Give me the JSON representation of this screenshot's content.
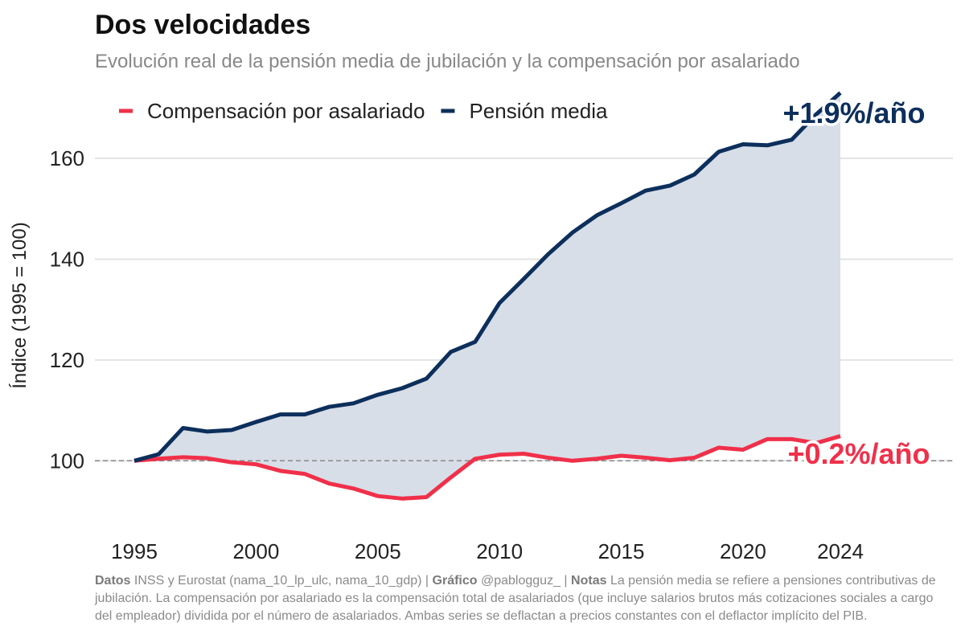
{
  "chart_data": {
    "type": "line",
    "title": "Dos velocidades",
    "subtitle": "Evolución real de la pensión media de jubilación y la compensación por asalariado",
    "y_label": "Índice (1995 = 100)",
    "x": [
      1995,
      1996,
      1997,
      1998,
      1999,
      2000,
      2001,
      2002,
      2003,
      2004,
      2005,
      2006,
      2007,
      2008,
      2009,
      2010,
      2011,
      2012,
      2013,
      2014,
      2015,
      2016,
      2017,
      2018,
      2019,
      2020,
      2021,
      2022,
      2023,
      2024
    ],
    "series": [
      {
        "name": "Compensación por asalariado",
        "color": "#f0304a",
        "values": [
          100,
          100.4,
          100.7,
          100.5,
          99.7,
          99.3,
          98.0,
          97.4,
          95.5,
          94.5,
          93.0,
          92.5,
          92.8,
          96.7,
          100.4,
          101.2,
          101.4,
          100.6,
          100.0,
          100.4,
          101.0,
          100.6,
          100.1,
          100.6,
          102.6,
          102.2,
          104.3,
          104.3,
          103.5,
          104.9
        ],
        "annotation": "+0.2%/año"
      },
      {
        "name": "Pensión media",
        "color": "#0d2f5c",
        "values": [
          100,
          101.3,
          106.5,
          105.8,
          106.1,
          107.7,
          109.2,
          109.2,
          110.7,
          111.4,
          113.1,
          114.4,
          116.3,
          121.6,
          123.6,
          131.3,
          136.1,
          141.0,
          145.3,
          148.7,
          151.1,
          153.6,
          154.6,
          156.8,
          161.3,
          162.8,
          162.6,
          163.7,
          168.7,
          173.0
        ],
        "annotation": "+1.9%/año"
      }
    ],
    "xlim": [
      1995,
      2024
    ],
    "xticks": [
      1995,
      2000,
      2005,
      2010,
      2015,
      2020,
      2024
    ],
    "ylim": [
      90,
      175
    ],
    "yticks": [
      100,
      120,
      140,
      160
    ],
    "grid": true,
    "reference_y": 100,
    "fill_between": true,
    "fill_color": "#d5dce6",
    "footer": [
      {
        "label": "Datos",
        "text": "INSS y Eurostat (nama_10_lp_ulc, nama_10_gdp) |"
      },
      {
        "label": "Gráfico",
        "text": "@pablogguz_ |"
      },
      {
        "label": "Notas",
        "text": "La pensión media se refiere a pensiones contributivas de jubilación. La compensación por asalariado es la compensación total de asalariados (que incluye salarios brutos más cotizaciones sociales a cargo del empleador) dividida por el número de asalariados. Ambas series se deflactan a precios constantes con el deflactor implícito del PIB."
      }
    ]
  }
}
